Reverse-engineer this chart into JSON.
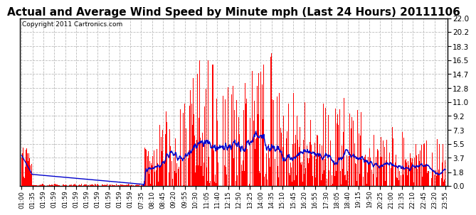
{
  "title": "Actual and Average Wind Speed by Minute mph (Last 24 Hours) 20111106",
  "copyright": "Copyright 2011 Cartronics.com",
  "yticks": [
    0.0,
    1.8,
    3.7,
    5.5,
    7.3,
    9.2,
    11.0,
    12.8,
    14.7,
    16.5,
    18.3,
    20.2,
    22.0
  ],
  "ymax": 22.0,
  "ymin": 0.0,
  "bar_color": "#FF0000",
  "line_color": "#0000CC",
  "background_color": "#FFFFFF",
  "grid_color": "#BBBBBB",
  "title_fontsize": 11,
  "copyright_fontsize": 6.5,
  "xtick_labels": [
    "01:00",
    "01:35",
    "01:59",
    "01:59",
    "01:59",
    "01:59",
    "01:59",
    "01:59",
    "01:59",
    "01:59",
    "01:59",
    "07:35",
    "08:10",
    "08:45",
    "09:20",
    "09:55",
    "10:30",
    "11:05",
    "11:40",
    "12:15",
    "12:50",
    "13:25",
    "14:00",
    "14:35",
    "15:10",
    "15:45",
    "16:20",
    "16:55",
    "17:30",
    "18:05",
    "18:40",
    "19:15",
    "19:50",
    "20:25",
    "21:00",
    "21:35",
    "22:10",
    "22:45",
    "23:20",
    "23:55"
  ]
}
